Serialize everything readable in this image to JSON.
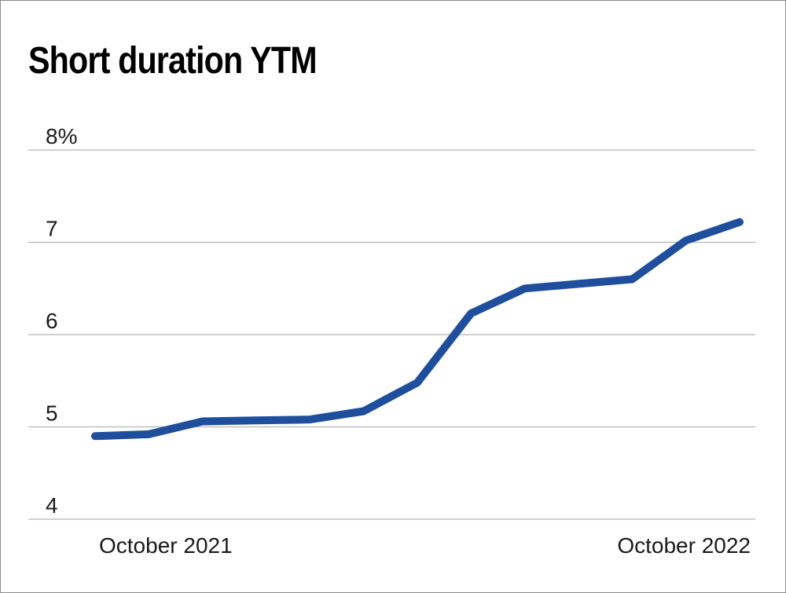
{
  "chart_data": {
    "type": "line",
    "title": "Short duration YTM",
    "xlabel": "",
    "ylabel": "",
    "ylim": [
      4,
      8
    ],
    "yticks": [
      {
        "value": 8,
        "label": "8%"
      },
      {
        "value": 7,
        "label": "7"
      },
      {
        "value": 6,
        "label": "6"
      },
      {
        "value": 5,
        "label": "5"
      },
      {
        "value": 4,
        "label": "4"
      }
    ],
    "xticks": [
      {
        "index": 0,
        "label": "October 2021"
      },
      {
        "index": 12,
        "label": "October 2022"
      }
    ],
    "grid": true,
    "series": [
      {
        "color": "#1f4e9c",
        "x": [
          "October 2021",
          "",
          "",
          "",
          "",
          "",
          "",
          "",
          "",
          "",
          "",
          "",
          "October 2022"
        ],
        "values": [
          4.9,
          4.92,
          5.06,
          5.07,
          5.08,
          5.17,
          5.48,
          6.23,
          6.5,
          6.55,
          6.6,
          7.02,
          7.22
        ]
      }
    ]
  }
}
